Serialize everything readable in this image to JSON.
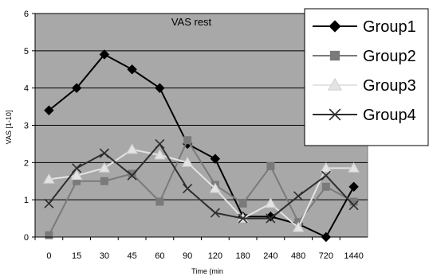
{
  "chart_data": {
    "type": "line",
    "title": "VAS rest",
    "xlabel": "Time (min",
    "ylabel": "VAS [1-10]",
    "categories": [
      "0",
      "15",
      "30",
      "45",
      "60",
      "90",
      "120",
      "180",
      "240",
      "480",
      "720",
      "1440"
    ],
    "ylim": [
      0,
      6
    ],
    "yticks": [
      "0",
      "1",
      "2",
      "3",
      "4",
      "5",
      "6"
    ],
    "grid": true,
    "legend_position": "top-right",
    "series": [
      {
        "name": "Group1",
        "color": "#000000",
        "marker": "diamond",
        "values": [
          3.4,
          4.0,
          4.9,
          4.5,
          4.0,
          2.5,
          2.1,
          0.55,
          0.55,
          0.35,
          0.0,
          1.35
        ]
      },
      {
        "name": "Group2",
        "color": "#7a7a7a",
        "marker": "square",
        "values": [
          0.05,
          1.5,
          1.5,
          1.7,
          0.95,
          2.6,
          1.4,
          0.9,
          1.9,
          0.4,
          1.35,
          0.95
        ]
      },
      {
        "name": "Group3",
        "color": "#e4e4e4",
        "marker": "triangle",
        "values": [
          1.55,
          1.65,
          1.85,
          2.35,
          2.2,
          2.0,
          1.3,
          0.5,
          0.9,
          0.25,
          1.85,
          1.85
        ]
      },
      {
        "name": "Group4",
        "color": "#2e2e2e",
        "marker": "x",
        "values": [
          0.9,
          1.85,
          2.25,
          1.65,
          2.5,
          1.3,
          0.65,
          0.5,
          0.5,
          1.1,
          1.65,
          0.85
        ]
      }
    ]
  }
}
